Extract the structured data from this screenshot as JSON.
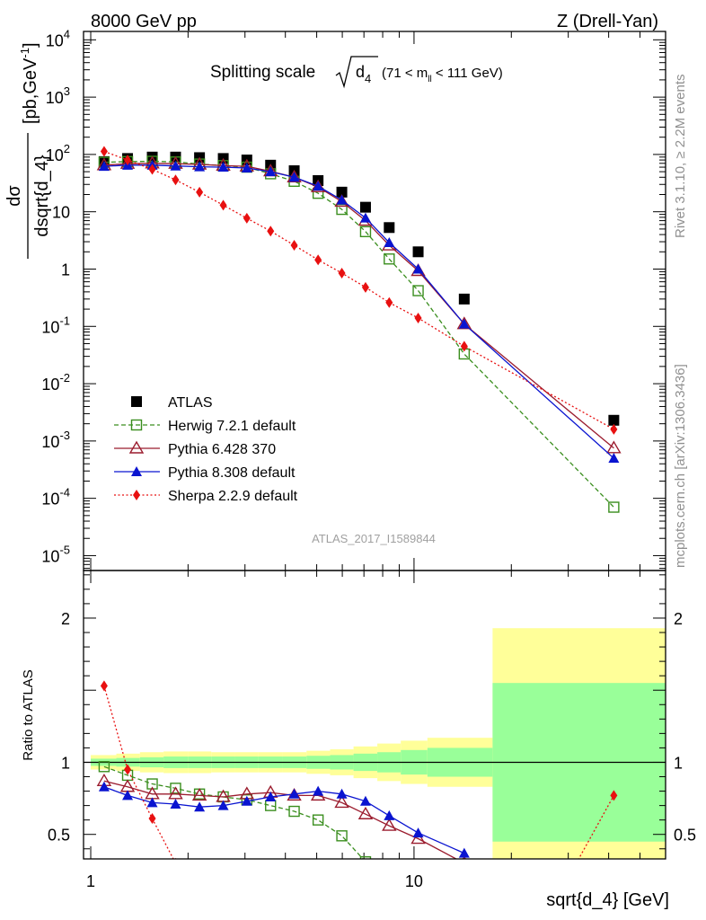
{
  "header": {
    "left": "8000 GeV pp",
    "right": "Z (Drell-Yan)"
  },
  "title": {
    "main": "Splitting scale",
    "sym": "d",
    "sub": "4",
    "range_prefix": "(71 < m",
    "range_sub": "ll",
    "range_suffix": " < 111 GeV)"
  },
  "side": {
    "rivet": "Rivet 3.1.10, ≥ 2.2M events",
    "mcplots": "mcplots.cern.ch [arXiv:1306.3436]"
  },
  "watermark": "ATLAS_2017_I1589844",
  "chart_data": {
    "type": "scatter",
    "xscale": "log",
    "xlim": [
      0.95,
      60
    ],
    "xlabel": "sqrt{d_4} [GeV]",
    "x_ticks": [
      {
        "v": 1,
        "label": "1"
      },
      {
        "v": 10,
        "label": "10"
      }
    ],
    "main": {
      "yscale": "log",
      "ylim": [
        5.5e-06,
        14000
      ],
      "ylabel_num": "dσ",
      "ylabel_den": "dsqrt{d_4}",
      "ylabel_units": "[pb,GeV",
      "ylabel_units_sup": "-1",
      "ylabel_units_close": "]",
      "y_ticks": [
        {
          "v": 1e-05,
          "base": "10",
          "exp": "-5"
        },
        {
          "v": 0.0001,
          "base": "10",
          "exp": "-4"
        },
        {
          "v": 0.001,
          "base": "10",
          "exp": "-3"
        },
        {
          "v": 0.01,
          "base": "10",
          "exp": "-2"
        },
        {
          "v": 0.1,
          "base": "10",
          "exp": "-1"
        },
        {
          "v": 1,
          "base": "1",
          "exp": ""
        },
        {
          "v": 10,
          "base": "10",
          "exp": ""
        },
        {
          "v": 100,
          "base": "10",
          "exp": "2"
        },
        {
          "v": 1000,
          "base": "10",
          "exp": "3"
        },
        {
          "v": 10000,
          "base": "10",
          "exp": "4"
        }
      ],
      "legend_position": "bottom-left",
      "series": [
        {
          "name": "ATLAS",
          "color": "#000000",
          "marker": "square",
          "line": "none",
          "x": [
            1.1,
            1.3,
            1.55,
            1.83,
            2.17,
            2.57,
            3.04,
            3.6,
            4.26,
            5.05,
            5.98,
            7.08,
            8.38,
            10.3,
            14.3,
            41.5
          ],
          "y": [
            75,
            85,
            90,
            90,
            88,
            85,
            80,
            65,
            52,
            35,
            22,
            12,
            5.3,
            2.0,
            0.3,
            0.0023
          ]
        },
        {
          "name": "Herwig 7.2.1 default",
          "color": "#3a8e1e",
          "marker": "open-square",
          "line": "dashed",
          "x": [
            1.1,
            1.3,
            1.55,
            1.83,
            2.17,
            2.57,
            3.04,
            3.6,
            4.26,
            5.05,
            5.98,
            7.08,
            8.38,
            10.3,
            14.3,
            41.5
          ],
          "y": [
            73,
            75,
            76,
            74,
            68,
            64,
            60,
            46,
            34,
            21,
            11,
            4.5,
            1.5,
            0.42,
            0.033,
            7e-05
          ]
        },
        {
          "name": "Pythia 6.428 370",
          "color": "#9b1c2e",
          "marker": "open-triangle",
          "line": "solid",
          "x": [
            1.1,
            1.3,
            1.55,
            1.83,
            2.17,
            2.57,
            3.04,
            3.6,
            4.26,
            5.05,
            5.98,
            7.08,
            8.38,
            10.3,
            14.3,
            41.5
          ],
          "y": [
            65,
            69,
            70,
            69,
            67,
            64,
            62,
            51,
            40,
            27,
            15,
            7.0,
            2.6,
            0.93,
            0.11,
            0.00075
          ]
        },
        {
          "name": "Pythia 8.308 default",
          "color": "#0a14d0",
          "marker": "triangle",
          "line": "solid",
          "x": [
            1.1,
            1.3,
            1.55,
            1.83,
            2.17,
            2.57,
            3.04,
            3.6,
            4.26,
            5.05,
            5.98,
            7.08,
            8.38,
            10.3,
            14.3,
            41.5
          ],
          "y": [
            62,
            65,
            65,
            63,
            61,
            60,
            58,
            50,
            40,
            28,
            16,
            7.8,
            2.9,
            1.0,
            0.11,
            0.0005
          ]
        },
        {
          "name": "Sherpa 2.2.9 default",
          "color": "#e81010",
          "marker": "diamond",
          "line": "dotted",
          "x": [
            1.1,
            1.3,
            1.55,
            1.83,
            2.17,
            2.57,
            3.04,
            3.6,
            4.26,
            5.05,
            5.98,
            7.08,
            8.38,
            10.3,
            14.3,
            41.5
          ],
          "y": [
            113,
            80,
            55,
            36,
            22,
            13,
            7.7,
            4.6,
            2.6,
            1.45,
            0.85,
            0.48,
            0.26,
            0.14,
            0.045,
            0.0016
          ]
        }
      ]
    },
    "ratio": {
      "yscale": "linear",
      "ylim": [
        0.33,
        2.33
      ],
      "ylabel": "Ratio to ATLAS",
      "y_ticks": [
        {
          "v": 0.5,
          "label": "0.5"
        },
        {
          "v": 1,
          "label": "1"
        },
        {
          "v": 2,
          "label": "2"
        }
      ],
      "bands": {
        "edges": [
          1,
          1.2,
          1.42,
          1.68,
          2.0,
          2.36,
          2.8,
          3.3,
          3.92,
          4.65,
          5.5,
          6.5,
          7.7,
          9.1,
          11.0,
          17.5,
          60
        ],
        "outer_color": "#ffff99",
        "inner_color": "#99ff99",
        "outer_half_widths": [
          0.05,
          0.06,
          0.07,
          0.075,
          0.075,
          0.07,
          0.07,
          0.07,
          0.07,
          0.08,
          0.09,
          0.11,
          0.13,
          0.15,
          0.17,
          0.93
        ],
        "inner_half_widths": [
          0.025,
          0.03,
          0.035,
          0.04,
          0.04,
          0.04,
          0.04,
          0.04,
          0.04,
          0.045,
          0.05,
          0.06,
          0.07,
          0.085,
          0.1,
          0.55
        ]
      },
      "series": [
        {
          "name": "Herwig 7.2.1 default",
          "x": [
            1.1,
            1.3,
            1.55,
            1.83,
            2.17,
            2.57,
            3.04,
            3.6,
            4.26,
            5.05,
            5.98,
            7.08
          ],
          "y": [
            0.97,
            0.91,
            0.85,
            0.82,
            0.78,
            0.76,
            0.74,
            0.7,
            0.66,
            0.6,
            0.49,
            0.31
          ]
        },
        {
          "name": "Pythia 6.428 370",
          "x": [
            1.1,
            1.3,
            1.55,
            1.83,
            2.17,
            2.57,
            3.04,
            3.6,
            4.26,
            5.05,
            5.98,
            7.08,
            8.38,
            10.3,
            14.3
          ],
          "y": [
            0.87,
            0.83,
            0.78,
            0.78,
            0.77,
            0.76,
            0.78,
            0.79,
            0.77,
            0.77,
            0.72,
            0.64,
            0.56,
            0.47,
            0.3
          ]
        },
        {
          "name": "Pythia 8.308 default",
          "x": [
            1.1,
            1.3,
            1.55,
            1.83,
            2.17,
            2.57,
            3.04,
            3.6,
            4.26,
            5.05,
            5.98,
            7.08,
            8.38,
            10.3,
            14.3
          ],
          "y": [
            0.83,
            0.77,
            0.72,
            0.71,
            0.69,
            0.7,
            0.73,
            0.76,
            0.78,
            0.8,
            0.78,
            0.73,
            0.63,
            0.51,
            0.37
          ]
        },
        {
          "name": "Sherpa 2.2.9 default",
          "x": [
            1.1,
            1.3,
            1.55,
            1.83,
            41.5
          ],
          "y": [
            1.53,
            0.95,
            0.61,
            0.3,
            0.77
          ]
        }
      ]
    }
  }
}
